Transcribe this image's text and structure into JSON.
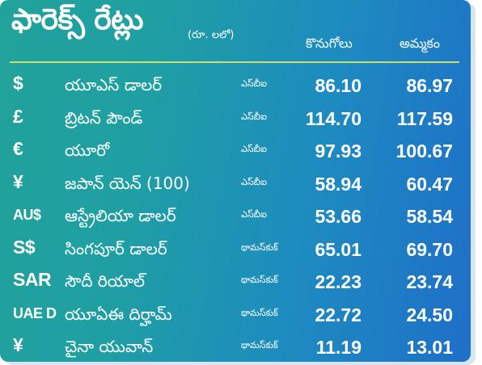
{
  "header": {
    "title": "ఫారెక్స్ రేట్లు",
    "unit": "(రూ. లలో)",
    "buy_label": "కొనుగోలు",
    "sell_label": "అమ్మకం"
  },
  "colors": {
    "gradient_start": "#21a29a",
    "gradient_end": "#1f6fc8",
    "text": "#ffffff",
    "divider": "#c8e070"
  },
  "rows": [
    {
      "symbol": "$",
      "name": "యూఎస్ డాలర్",
      "bank": "ఎస్‌బీఐ",
      "buy": "86.10",
      "sell": "86.97"
    },
    {
      "symbol": "£",
      "name": "బ్రిటన్ పౌండ్",
      "bank": "ఎస్‌బీఐ",
      "buy": "114.70",
      "sell": "117.59"
    },
    {
      "symbol": "€",
      "name": "యూరో",
      "bank": "ఎస్‌బీఐ",
      "buy": "97.93",
      "sell": "100.67"
    },
    {
      "symbol": "¥",
      "name": "జపాన్ యెన్ (100)",
      "bank": "ఎస్‌బీఐ",
      "buy": "58.94",
      "sell": "60.47"
    },
    {
      "symbol": "AU$",
      "name": "ఆస్ట్రేలియా డాలర్",
      "bank": "ఎస్‌బీఐ",
      "buy": "53.66",
      "sell": "58.54"
    },
    {
      "symbol": "S$",
      "name": "సింగపూర్ డాలర్",
      "bank": "థామస్‌కుక్",
      "buy": "65.01",
      "sell": "69.70"
    },
    {
      "symbol": "SAR",
      "name": "సౌదీ రియాల్",
      "bank": "థామస్‌కుక్",
      "buy": "22.23",
      "sell": "23.74"
    },
    {
      "symbol": "UAE D",
      "name": "యూఏఈ దిర్హామ్",
      "bank": "థామస్‌కుక్",
      "buy": "22.72",
      "sell": "24.50"
    },
    {
      "symbol": "¥",
      "name": "చైనా యువాన్",
      "bank": "థామస్‌కుక్",
      "buy": "11.19",
      "sell": "13.01"
    }
  ]
}
